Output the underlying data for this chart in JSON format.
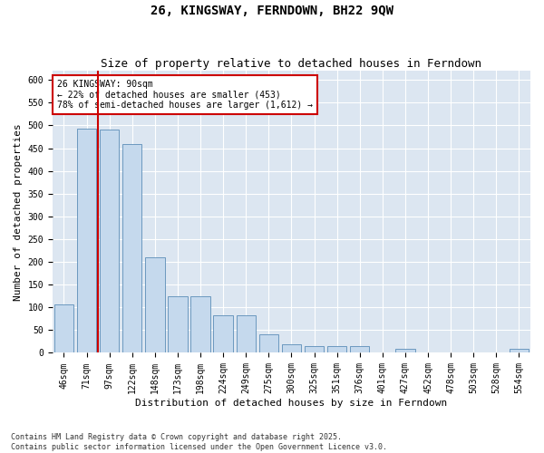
{
  "title": "26, KINGSWAY, FERNDOWN, BH22 9QW",
  "subtitle": "Size of property relative to detached houses in Ferndown",
  "xlabel": "Distribution of detached houses by size in Ferndown",
  "ylabel": "Number of detached properties",
  "footnote": "Contains HM Land Registry data © Crown copyright and database right 2025.\nContains public sector information licensed under the Open Government Licence v3.0.",
  "annotation_title": "26 KINGSWAY: 90sqm",
  "annotation_line1": "← 22% of detached houses are smaller (453)",
  "annotation_line2": "78% of semi-detached houses are larger (1,612) →",
  "bar_color": "#c5d9ed",
  "bar_edge_color": "#5b8db8",
  "bg_color": "#dce6f1",
  "grid_color": "#ffffff",
  "vline_color": "#cc0000",
  "annotation_box_edge": "#cc0000",
  "categories": [
    "46sqm",
    "71sqm",
    "97sqm",
    "122sqm",
    "148sqm",
    "173sqm",
    "198sqm",
    "224sqm",
    "249sqm",
    "275sqm",
    "300sqm",
    "325sqm",
    "351sqm",
    "376sqm",
    "401sqm",
    "427sqm",
    "452sqm",
    "478sqm",
    "503sqm",
    "528sqm",
    "554sqm"
  ],
  "values": [
    107,
    493,
    490,
    460,
    210,
    125,
    125,
    82,
    82,
    40,
    18,
    15,
    15,
    15,
    0,
    8,
    0,
    0,
    0,
    0,
    8
  ],
  "ylim": [
    0,
    620
  ],
  "yticks": [
    0,
    50,
    100,
    150,
    200,
    250,
    300,
    350,
    400,
    450,
    500,
    550,
    600
  ],
  "vline_x_index": 1.5,
  "title_fontsize": 10,
  "subtitle_fontsize": 9,
  "tick_fontsize": 7,
  "label_fontsize": 8
}
